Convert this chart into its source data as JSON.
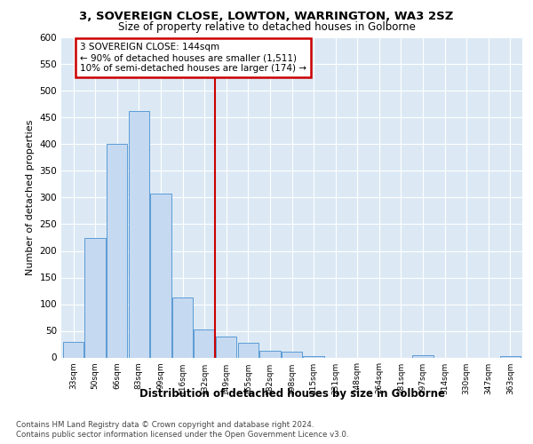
{
  "title1": "3, SOVEREIGN CLOSE, LOWTON, WARRINGTON, WA3 2SZ",
  "title2": "Size of property relative to detached houses in Golborne",
  "xlabel": "Distribution of detached houses by size in Golborne",
  "ylabel": "Number of detached properties",
  "categories": [
    "33sqm",
    "50sqm",
    "66sqm",
    "83sqm",
    "99sqm",
    "116sqm",
    "132sqm",
    "149sqm",
    "165sqm",
    "182sqm",
    "198sqm",
    "215sqm",
    "231sqm",
    "248sqm",
    "264sqm",
    "281sqm",
    "297sqm",
    "314sqm",
    "330sqm",
    "347sqm",
    "363sqm"
  ],
  "values": [
    30,
    225,
    400,
    462,
    307,
    112,
    52,
    40,
    27,
    13,
    11,
    3,
    0,
    0,
    0,
    0,
    5,
    0,
    0,
    0,
    2
  ],
  "bar_color": "#c5d9f1",
  "bar_edge_color": "#5b9bd5",
  "property_line_x": 6.5,
  "annotation_text": "3 SOVEREIGN CLOSE: 144sqm\n← 90% of detached houses are smaller (1,511)\n10% of semi-detached houses are larger (174) →",
  "annotation_box_color": "#ffffff",
  "annotation_box_edge_color": "#cc0000",
  "line_color": "#cc0000",
  "footer1": "Contains HM Land Registry data © Crown copyright and database right 2024.",
  "footer2": "Contains public sector information licensed under the Open Government Licence v3.0.",
  "plot_bg_color": "#dce9f5",
  "ylim": [
    0,
    600
  ],
  "yticks": [
    0,
    50,
    100,
    150,
    200,
    250,
    300,
    350,
    400,
    450,
    500,
    550,
    600
  ]
}
